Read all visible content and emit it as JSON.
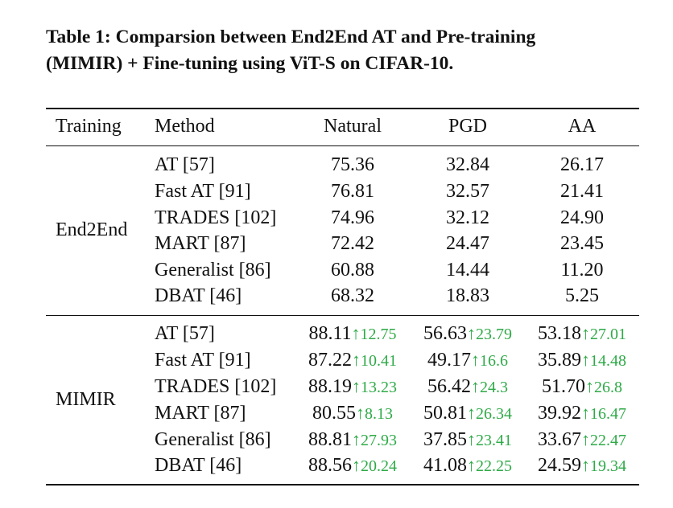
{
  "caption": {
    "line1": "Table 1: Comparsion between End2End AT and Pre-training",
    "line2": "(MIMIR) + Fine-tuning using ViT-S on CIFAR-10."
  },
  "table": {
    "headers": [
      "Training",
      "Method",
      "Natural",
      "PGD",
      "AA"
    ],
    "groups": [
      {
        "training": "End2End",
        "rows": [
          {
            "method": "AT [57]",
            "natural": "75.36",
            "pgd": "32.84",
            "aa": "26.17"
          },
          {
            "method": "Fast AT [91]",
            "natural": "76.81",
            "pgd": "32.57",
            "aa": "21.41"
          },
          {
            "method": "TRADES [102]",
            "natural": "74.96",
            "pgd": "32.12",
            "aa": "24.90"
          },
          {
            "method": "MART [87]",
            "natural": "72.42",
            "pgd": "24.47",
            "aa": "23.45"
          },
          {
            "method": "Generalist [86]",
            "natural": "60.88",
            "pgd": "14.44",
            "aa": "11.20"
          },
          {
            "method": "DBAT [46]",
            "natural": "68.32",
            "pgd": "18.83",
            "aa": "5.25"
          }
        ]
      },
      {
        "training": "MIMIR",
        "rows": [
          {
            "method": "AT [57]",
            "natural": "88.11",
            "natural_gain": "12.75",
            "pgd": "56.63",
            "pgd_gain": "23.79",
            "aa": "53.18",
            "aa_gain": "27.01"
          },
          {
            "method": "Fast AT [91]",
            "natural": "87.22",
            "natural_gain": "10.41",
            "pgd": "49.17",
            "pgd_gain": "16.6",
            "aa": "35.89",
            "aa_gain": "14.48"
          },
          {
            "method": "TRADES [102]",
            "natural": "88.19",
            "natural_gain": "13.23",
            "pgd": "56.42",
            "pgd_gain": "24.3",
            "aa": "51.70",
            "aa_gain": "26.8"
          },
          {
            "method": "MART [87]",
            "natural": "80.55",
            "natural_gain": "8.13",
            "pgd": "50.81",
            "pgd_gain": "26.34",
            "aa": "39.92",
            "aa_gain": "16.47"
          },
          {
            "method": "Generalist [86]",
            "natural": "88.81",
            "natural_gain": "27.93",
            "pgd": "37.85",
            "pgd_gain": "23.41",
            "aa": "33.67",
            "aa_gain": "22.47"
          },
          {
            "method": "DBAT [46]",
            "natural": "88.56",
            "natural_gain": "20.24",
            "pgd": "41.08",
            "pgd_gain": "22.25",
            "aa": "24.59",
            "aa_gain": "19.34"
          }
        ]
      }
    ],
    "gain_arrow": "↑",
    "gain_color": "#2eaa47"
  }
}
